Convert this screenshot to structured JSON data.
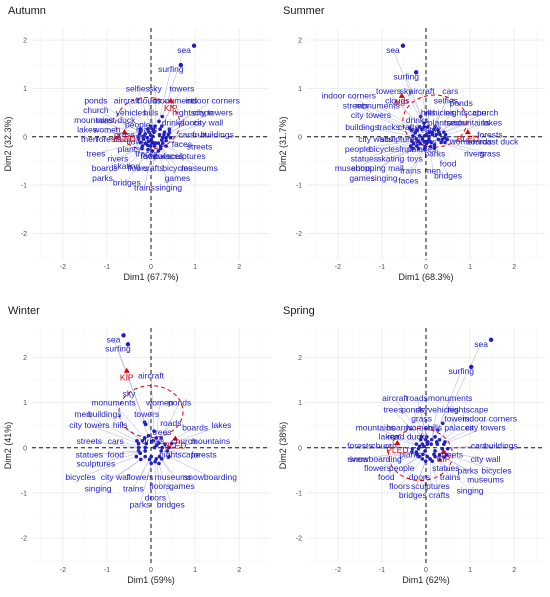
{
  "chart_data": [
    {
      "type": "scatter",
      "title": "Autumn",
      "xlabel": "Dim1 (67.7%)",
      "ylabel": "Dim2 (32.3%)",
      "xlim": [
        -2.7,
        2.7
      ],
      "ylim": [
        -2.55,
        2.25
      ],
      "xticks": [
        -2,
        -1,
        0,
        1,
        2
      ],
      "yticks": [
        -2,
        -1,
        0,
        1,
        2
      ],
      "colors": {
        "words": "#1f1fbf",
        "supplementary": "#e00000"
      },
      "points": [
        {
          "label": "sea",
          "x": 0.75,
          "y": 1.8
        },
        {
          "label": "surfing",
          "x": 0.45,
          "y": 1.4
        },
        {
          "label": "selfies",
          "x": -0.3,
          "y": 1.0
        },
        {
          "label": "sky",
          "x": 0.1,
          "y": 1.0
        },
        {
          "label": "towers",
          "x": 0.7,
          "y": 1.0
        },
        {
          "label": "ponds",
          "x": -1.25,
          "y": 0.75
        },
        {
          "label": "aircraft",
          "x": -0.55,
          "y": 0.75
        },
        {
          "label": "clouds",
          "x": -0.05,
          "y": 0.75
        },
        {
          "label": "monuments",
          "x": 0.55,
          "y": 0.75
        },
        {
          "label": "indoor corners",
          "x": 1.4,
          "y": 0.75
        },
        {
          "label": "church",
          "x": -1.25,
          "y": 0.55
        },
        {
          "label": "vehicles",
          "x": -0.45,
          "y": 0.5
        },
        {
          "label": "hills",
          "x": 0.0,
          "y": 0.5
        },
        {
          "label": "nightscape",
          "x": 0.95,
          "y": 0.5
        },
        {
          "label": "city towers",
          "x": 1.4,
          "y": 0.5
        },
        {
          "label": "mountains",
          "x": -1.3,
          "y": 0.35
        },
        {
          "label": "roast duck",
          "x": -0.8,
          "y": 0.35
        },
        {
          "label": "drinks",
          "x": 0.5,
          "y": 0.3
        },
        {
          "label": "doors",
          "x": 0.9,
          "y": 0.3
        },
        {
          "label": "city wall",
          "x": 1.3,
          "y": 0.3
        },
        {
          "label": "people",
          "x": -0.3,
          "y": 0.25
        },
        {
          "label": "roads",
          "x": -0.1,
          "y": 0.15
        },
        {
          "label": "lakes",
          "x": -1.45,
          "y": 0.15
        },
        {
          "label": "women",
          "x": -1.0,
          "y": 0.15
        },
        {
          "label": "grass",
          "x": -0.6,
          "y": 0.05
        },
        {
          "label": "cars",
          "x": 0.8,
          "y": 0.05
        },
        {
          "label": "fruit",
          "x": 1.1,
          "y": 0.05
        },
        {
          "label": "buildings",
          "x": 1.5,
          "y": 0.05
        },
        {
          "label": "men",
          "x": -1.4,
          "y": -0.05
        },
        {
          "label": "forests",
          "x": -0.95,
          "y": -0.05
        },
        {
          "label": "flowers",
          "x": -0.25,
          "y": -0.1
        },
        {
          "label": "faces",
          "x": 0.7,
          "y": -0.15
        },
        {
          "label": "streets",
          "x": 1.1,
          "y": -0.2
        },
        {
          "label": "plants",
          "x": -0.5,
          "y": -0.25
        },
        {
          "label": "trees",
          "x": -1.25,
          "y": -0.35
        },
        {
          "label": "rivers",
          "x": -0.75,
          "y": -0.45
        },
        {
          "label": "tracks",
          "x": -0.1,
          "y": -0.35
        },
        {
          "label": "palaces",
          "x": 0.4,
          "y": -0.4
        },
        {
          "label": "sculptures",
          "x": 0.8,
          "y": -0.4
        },
        {
          "label": "boards",
          "x": -1.05,
          "y": -0.65
        },
        {
          "label": "skating",
          "x": -0.55,
          "y": -0.6
        },
        {
          "label": "floors",
          "x": -0.3,
          "y": -0.65
        },
        {
          "label": "crafts",
          "x": 0.05,
          "y": -0.65
        },
        {
          "label": "bicycles",
          "x": 0.6,
          "y": -0.65
        },
        {
          "label": "museums",
          "x": 1.1,
          "y": -0.65
        },
        {
          "label": "parks",
          "x": -1.1,
          "y": -0.85
        },
        {
          "label": "food",
          "x": -0.05,
          "y": -0.4
        },
        {
          "label": "statues",
          "x": 0.15,
          "y": -0.4
        },
        {
          "label": "games",
          "x": 0.6,
          "y": -0.85
        },
        {
          "label": "bridges",
          "x": -0.55,
          "y": -0.95
        },
        {
          "label": "trains",
          "x": -0.15,
          "y": -1.05
        },
        {
          "label": "singing",
          "x": 0.4,
          "y": -1.05
        }
      ],
      "supplementary": [
        {
          "label": "BLED",
          "x": -0.6,
          "y": -0.05
        },
        {
          "label": "KIP",
          "x": 0.45,
          "y": 0.6
        }
      ]
    },
    {
      "type": "scatter",
      "title": "Summer",
      "xlabel": "Dim1 (68.3%)",
      "ylabel": "Dim2 (31.7%)",
      "xlim": [
        -2.7,
        2.7
      ],
      "ylim": [
        -2.55,
        2.25
      ],
      "xticks": [
        -2,
        -1,
        0,
        1,
        2
      ],
      "yticks": [
        -2,
        -1,
        0,
        1,
        2
      ],
      "colors": {
        "words": "#1f1fbf",
        "supplementary": "#e00000"
      },
      "points": [
        {
          "label": "sea",
          "x": -0.75,
          "y": 1.8
        },
        {
          "label": "surfing",
          "x": -0.45,
          "y": 1.25
        },
        {
          "label": "towers",
          "x": -0.85,
          "y": 0.95
        },
        {
          "label": "sky",
          "x": -0.45,
          "y": 0.95
        },
        {
          "label": "aircraft",
          "x": -0.1,
          "y": 0.95
        },
        {
          "label": "cars",
          "x": 0.55,
          "y": 0.95
        },
        {
          "label": "indoor corners",
          "x": -1.75,
          "y": 0.85
        },
        {
          "label": "clouds",
          "x": -0.65,
          "y": 0.75
        },
        {
          "label": "selfies",
          "x": 0.45,
          "y": 0.75
        },
        {
          "label": "ponds",
          "x": 0.8,
          "y": 0.7
        },
        {
          "label": "streets",
          "x": -1.6,
          "y": 0.65
        },
        {
          "label": "monuments",
          "x": -1.1,
          "y": 0.65
        },
        {
          "label": "hills",
          "x": 0.05,
          "y": 0.5
        },
        {
          "label": "vehicles",
          "x": 0.3,
          "y": 0.5
        },
        {
          "label": "nightscape",
          "x": 0.9,
          "y": 0.5
        },
        {
          "label": "church",
          "x": 1.35,
          "y": 0.5
        },
        {
          "label": "city towers",
          "x": -1.25,
          "y": 0.45
        },
        {
          "label": "drinks",
          "x": -0.2,
          "y": 0.35
        },
        {
          "label": "plants",
          "x": 0.3,
          "y": 0.3
        },
        {
          "label": "roads",
          "x": 0.65,
          "y": 0.3
        },
        {
          "label": "mountains",
          "x": 1.0,
          "y": 0.3
        },
        {
          "label": "lakes",
          "x": 1.5,
          "y": 0.3
        },
        {
          "label": "buildings",
          "x": -1.45,
          "y": 0.2
        },
        {
          "label": "tracks",
          "x": -0.85,
          "y": 0.2
        },
        {
          "label": "crafts",
          "x": -0.4,
          "y": 0.2
        },
        {
          "label": "streets2",
          "x": 0.0,
          "y": 0.15
        },
        {
          "label": "city walls",
          "x": -1.15,
          "y": -0.05
        },
        {
          "label": "sculptures",
          "x": -0.6,
          "y": -0.05
        },
        {
          "label": "doors",
          "x": 0.0,
          "y": -0.1
        },
        {
          "label": "forests",
          "x": 1.45,
          "y": 0.05
        },
        {
          "label": "women",
          "x": 0.85,
          "y": -0.1
        },
        {
          "label": "boards",
          "x": 1.2,
          "y": -0.1
        },
        {
          "label": "roast duck",
          "x": 1.65,
          "y": -0.1
        },
        {
          "label": "people",
          "x": -1.55,
          "y": -0.25
        },
        {
          "label": "bicycles",
          "x": -0.95,
          "y": -0.25
        },
        {
          "label": "fruit",
          "x": -0.45,
          "y": -0.25
        },
        {
          "label": "palaces",
          "x": -0.1,
          "y": -0.25
        },
        {
          "label": "statues",
          "x": -1.4,
          "y": -0.45
        },
        {
          "label": "skating",
          "x": -0.8,
          "y": -0.45
        },
        {
          "label": "toys",
          "x": -0.25,
          "y": -0.45
        },
        {
          "label": "parks",
          "x": 0.2,
          "y": -0.35
        },
        {
          "label": "rivers",
          "x": 1.1,
          "y": -0.35
        },
        {
          "label": "grass",
          "x": 1.45,
          "y": -0.35
        },
        {
          "label": "food",
          "x": 0.5,
          "y": -0.55
        },
        {
          "label": "museums",
          "x": -1.65,
          "y": -0.65
        },
        {
          "label": "shopping mall",
          "x": -1.1,
          "y": -0.65
        },
        {
          "label": "men",
          "x": 0.15,
          "y": -0.7
        },
        {
          "label": "trains",
          "x": -0.35,
          "y": -0.7
        },
        {
          "label": "games",
          "x": -1.45,
          "y": -0.85
        },
        {
          "label": "singing",
          "x": -0.95,
          "y": -0.85
        },
        {
          "label": "faces",
          "x": -0.4,
          "y": -0.9
        },
        {
          "label": "bridges",
          "x": 0.5,
          "y": -0.8
        }
      ],
      "supplementary": [
        {
          "label": "BLED",
          "x": 0.95,
          "y": -0.05
        },
        {
          "label": "KIP",
          "x": -0.55,
          "y": 0.7
        }
      ]
    },
    {
      "type": "scatter",
      "title": "Winter",
      "xlabel": "Dim1 (59%)",
      "ylabel": "Dim2 (41%)",
      "xlim": [
        -2.7,
        2.7
      ],
      "ylim": [
        -2.55,
        2.65
      ],
      "xticks": [
        -2,
        -1,
        0,
        1,
        2
      ],
      "yticks": [
        -2,
        -1,
        0,
        1,
        2
      ],
      "colors": {
        "words": "#1f1fbf",
        "supplementary": "#e00000"
      },
      "points": [
        {
          "label": "sea",
          "x": -0.85,
          "y": 2.4
        },
        {
          "label": "surfing",
          "x": -0.75,
          "y": 2.2
        },
        {
          "label": "aircraft",
          "x": 0.0,
          "y": 1.6
        },
        {
          "label": "sky",
          "x": -0.5,
          "y": 1.2
        },
        {
          "label": "monuments",
          "x": -0.85,
          "y": 1.0
        },
        {
          "label": "women",
          "x": 0.2,
          "y": 1.0
        },
        {
          "label": "ponds",
          "x": 0.65,
          "y": 1.0
        },
        {
          "label": "men",
          "x": -1.55,
          "y": 0.75
        },
        {
          "label": "buildings",
          "x": -1.05,
          "y": 0.75
        },
        {
          "label": "towers",
          "x": -0.1,
          "y": 0.75
        },
        {
          "label": "roads",
          "x": 0.45,
          "y": 0.55
        },
        {
          "label": "city towers",
          "x": -1.4,
          "y": 0.5
        },
        {
          "label": "hills",
          "x": -0.7,
          "y": 0.5
        },
        {
          "label": "trees",
          "x": 0.25,
          "y": 0.35
        },
        {
          "label": "boards",
          "x": 1.0,
          "y": 0.45
        },
        {
          "label": "lakes",
          "x": 1.6,
          "y": 0.5
        },
        {
          "label": "streets",
          "x": -1.4,
          "y": 0.15
        },
        {
          "label": "cars",
          "x": -0.8,
          "y": 0.15
        },
        {
          "label": "drinks",
          "x": 0.05,
          "y": 0.15
        },
        {
          "label": "church",
          "x": 0.75,
          "y": 0.15
        },
        {
          "label": "mountains",
          "x": 1.35,
          "y": 0.15
        },
        {
          "label": "statues",
          "x": -1.4,
          "y": -0.15
        },
        {
          "label": "food",
          "x": -0.8,
          "y": -0.15
        },
        {
          "label": "nightscape",
          "x": 0.65,
          "y": -0.15
        },
        {
          "label": "forests",
          "x": 1.2,
          "y": -0.15
        },
        {
          "label": "sculptures",
          "x": -1.25,
          "y": -0.35
        },
        {
          "label": "bicycles",
          "x": -1.6,
          "y": -0.65
        },
        {
          "label": "city wall",
          "x": -0.8,
          "y": -0.65
        },
        {
          "label": "flowers",
          "x": -0.25,
          "y": -0.65
        },
        {
          "label": "museums",
          "x": 0.5,
          "y": -0.65
        },
        {
          "label": "snowboarding",
          "x": 1.35,
          "y": -0.65
        },
        {
          "label": "singing",
          "x": -1.2,
          "y": -0.9
        },
        {
          "label": "trains",
          "x": -0.4,
          "y": -0.9
        },
        {
          "label": "floors",
          "x": 0.2,
          "y": -0.85
        },
        {
          "label": "games",
          "x": 0.7,
          "y": -0.85
        },
        {
          "label": "doors",
          "x": 0.1,
          "y": -1.1
        },
        {
          "label": "parks",
          "x": -0.25,
          "y": -1.25
        },
        {
          "label": "bridges",
          "x": 0.45,
          "y": -1.25
        }
      ],
      "supplementary": [
        {
          "label": "KIP",
          "x": -0.55,
          "y": 1.55
        },
        {
          "label": "BLED",
          "x": 0.55,
          "y": 0.05
        }
      ]
    },
    {
      "type": "scatter",
      "title": "Spring",
      "xlabel": "Dim1 (62%)",
      "ylabel": "Dim2 (38%)",
      "xlim": [
        -2.7,
        2.7
      ],
      "ylim": [
        -2.55,
        2.65
      ],
      "xticks": [
        -2,
        -1,
        0,
        1,
        2
      ],
      "yticks": [
        -2,
        -1,
        0,
        1,
        2
      ],
      "colors": {
        "words": "#1f1fbf",
        "supplementary": "#e00000"
      },
      "points": [
        {
          "label": "sea",
          "x": 1.25,
          "y": 2.3
        },
        {
          "label": "surfing",
          "x": 0.8,
          "y": 1.7
        },
        {
          "label": "aircraft",
          "x": -0.7,
          "y": 1.1
        },
        {
          "label": "roads",
          "x": -0.2,
          "y": 1.1
        },
        {
          "label": "monuments",
          "x": 0.55,
          "y": 1.1
        },
        {
          "label": "trees",
          "x": -0.75,
          "y": 0.85
        },
        {
          "label": "ponds",
          "x": -0.3,
          "y": 0.85
        },
        {
          "label": "skyvehicles",
          "x": 0.25,
          "y": 0.85
        },
        {
          "label": "nightscape",
          "x": 0.95,
          "y": 0.85
        },
        {
          "label": "grass",
          "x": -0.1,
          "y": 0.65
        },
        {
          "label": "towers",
          "x": 0.7,
          "y": 0.65
        },
        {
          "label": "indoor corners",
          "x": 1.45,
          "y": 0.65
        },
        {
          "label": "mountains",
          "x": -1.15,
          "y": 0.45
        },
        {
          "label": "boards",
          "x": -0.6,
          "y": 0.45
        },
        {
          "label": "women",
          "x": -0.15,
          "y": 0.45
        },
        {
          "label": "hills",
          "x": 0.2,
          "y": 0.45
        },
        {
          "label": "palaces",
          "x": 0.75,
          "y": 0.45
        },
        {
          "label": "city towers",
          "x": 1.35,
          "y": 0.45
        },
        {
          "label": "lakes",
          "x": -0.85,
          "y": 0.25
        },
        {
          "label": "road duck",
          "x": -0.45,
          "y": 0.25
        },
        {
          "label": "forests",
          "x": -1.5,
          "y": 0.05
        },
        {
          "label": "church",
          "x": -0.95,
          "y": 0.05
        },
        {
          "label": "cars",
          "x": 1.2,
          "y": 0.05
        },
        {
          "label": "buildings",
          "x": 1.7,
          "y": 0.05
        },
        {
          "label": "plants",
          "x": -0.35,
          "y": -0.15
        },
        {
          "label": "streets",
          "x": 0.55,
          "y": -0.15
        },
        {
          "label": "city wall",
          "x": 1.35,
          "y": -0.25
        },
        {
          "label": "rivers",
          "x": -1.55,
          "y": -0.25
        },
        {
          "label": "snowboarding",
          "x": -1.15,
          "y": -0.25
        },
        {
          "label": "flowers",
          "x": -1.1,
          "y": -0.45
        },
        {
          "label": "people",
          "x": -0.55,
          "y": -0.45
        },
        {
          "label": "statues",
          "x": 0.45,
          "y": -0.45
        },
        {
          "label": "parks",
          "x": 0.95,
          "y": -0.5
        },
        {
          "label": "bicycles",
          "x": 1.6,
          "y": -0.5
        },
        {
          "label": "food",
          "x": -0.9,
          "y": -0.65
        },
        {
          "label": "doors",
          "x": -0.15,
          "y": -0.65
        },
        {
          "label": "trains",
          "x": 0.55,
          "y": -0.65
        },
        {
          "label": "museums",
          "x": 1.35,
          "y": -0.7
        },
        {
          "label": "floors",
          "x": -0.6,
          "y": -0.85
        },
        {
          "label": "sculptures",
          "x": 0.1,
          "y": -0.85
        },
        {
          "label": "singing",
          "x": 1.0,
          "y": -0.95
        },
        {
          "label": "bridges",
          "x": -0.3,
          "y": -1.05
        },
        {
          "label": "crafts",
          "x": 0.3,
          "y": -1.05
        }
      ],
      "supplementary": [
        {
          "label": "PLED",
          "x": -0.65,
          "y": -0.05
        },
        {
          "label": "KIP",
          "x": 0.4,
          "y": -0.25
        }
      ]
    }
  ]
}
